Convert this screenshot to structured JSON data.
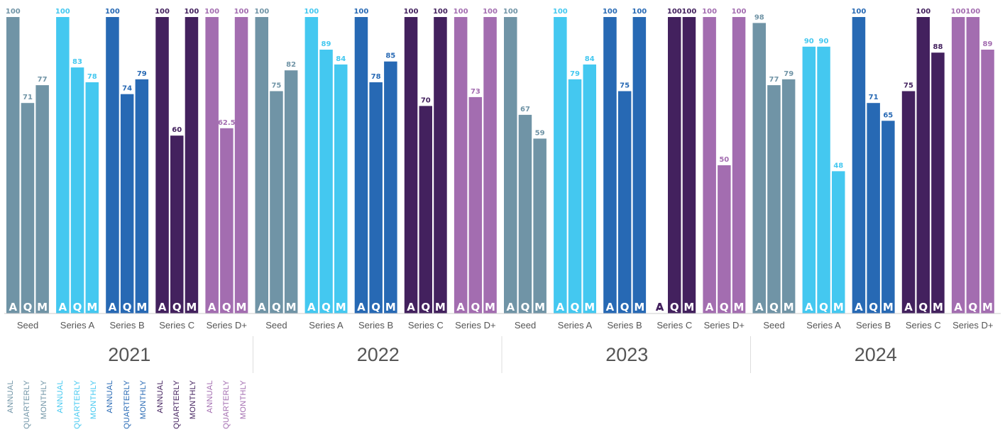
{
  "chart_data": {
    "type": "bar",
    "years": [
      "2021",
      "2022",
      "2023",
      "2024"
    ],
    "stages": [
      "Seed",
      "Series A",
      "Series B",
      "Series C",
      "Series D+"
    ],
    "frequency_codes": [
      "A",
      "Q",
      "M"
    ],
    "stage_colors": {
      "Seed": "#7094a6",
      "Series A": "#44c8f0",
      "Series B": "#2769b4",
      "Series C": "#43215e",
      "Series D+": "#a36db0"
    },
    "ylim": [
      0,
      100
    ],
    "values": {
      "2021": {
        "Seed": [
          100,
          71,
          77
        ],
        "Series A": [
          100,
          83,
          78
        ],
        "Series B": [
          100,
          74,
          79
        ],
        "Series C": [
          100,
          60,
          100
        ],
        "Series D+": [
          100,
          62.5,
          100
        ]
      },
      "2022": {
        "Seed": [
          100,
          75,
          82
        ],
        "Series A": [
          100,
          89,
          84
        ],
        "Series B": [
          100,
          78,
          85
        ],
        "Series C": [
          100,
          70,
          100
        ],
        "Series D+": [
          100,
          73,
          100
        ]
      },
      "2023": {
        "Seed": [
          100,
          67,
          59
        ],
        "Series A": [
          100,
          79,
          84
        ],
        "Series B": [
          100,
          75,
          100
        ],
        "Series C": [
          0,
          100,
          100
        ],
        "Series D+": [
          100,
          50,
          100
        ]
      },
      "2024": {
        "Seed": [
          98,
          77,
          79
        ],
        "Series A": [
          90,
          90,
          48
        ],
        "Series B": [
          100,
          71,
          65
        ],
        "Series C": [
          75,
          100,
          88
        ],
        "Series D+": [
          100,
          100,
          89
        ]
      }
    },
    "legend": [
      {
        "stage": "Seed",
        "labels": [
          "ANNUAL",
          "QUARTERLY",
          "MONTHLY"
        ]
      },
      {
        "stage": "Series A",
        "labels": [
          "ANNUAL",
          "QUARTERLY",
          "MONTHLY"
        ]
      },
      {
        "stage": "Series B",
        "labels": [
          "ANNUAL",
          "QUARTERLY",
          "MONTHLY"
        ]
      },
      {
        "stage": "Series C",
        "labels": [
          "ANNUAL",
          "QUARTERLY",
          "MONTHLY"
        ]
      },
      {
        "stage": "Series D+",
        "labels": [
          "ANNUAL",
          "QUARTERLY",
          "MONTHLY"
        ]
      }
    ]
  }
}
